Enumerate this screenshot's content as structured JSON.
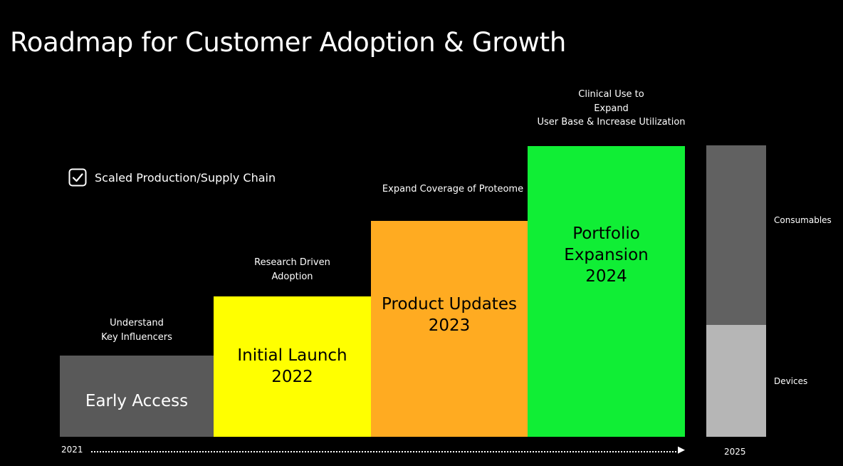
{
  "title": "Roadmap for Customer Adoption & Growth",
  "checklist": {
    "icon": "checkbox-checked-icon",
    "label": "Scaled Production/Supply Chain"
  },
  "steps": [
    {
      "label": "Early Access",
      "caption": "Understand\nKey Influencers",
      "color": "#595959"
    },
    {
      "label": "Initial Launch\n2022",
      "caption": "Research Driven\nAdoption",
      "color": "#ffff00"
    },
    {
      "label": "Product Updates\n2023",
      "caption": "Expand Coverage of Proteome",
      "color": "#ffab21"
    },
    {
      "label": "Portfolio\nExpansion\n2024",
      "caption": "Clinical Use to\nExpand\nUser Base & Increase Utilization",
      "color": "#10ee35"
    }
  ],
  "revenue_bar": {
    "segments": [
      {
        "label": "Consumables",
        "color": "#616161"
      },
      {
        "label": "Devices",
        "color": "#b6b6b6"
      }
    ]
  },
  "timeline": {
    "start": "2021",
    "end": "2025",
    "arrow_icon": "arrow-right-icon"
  }
}
